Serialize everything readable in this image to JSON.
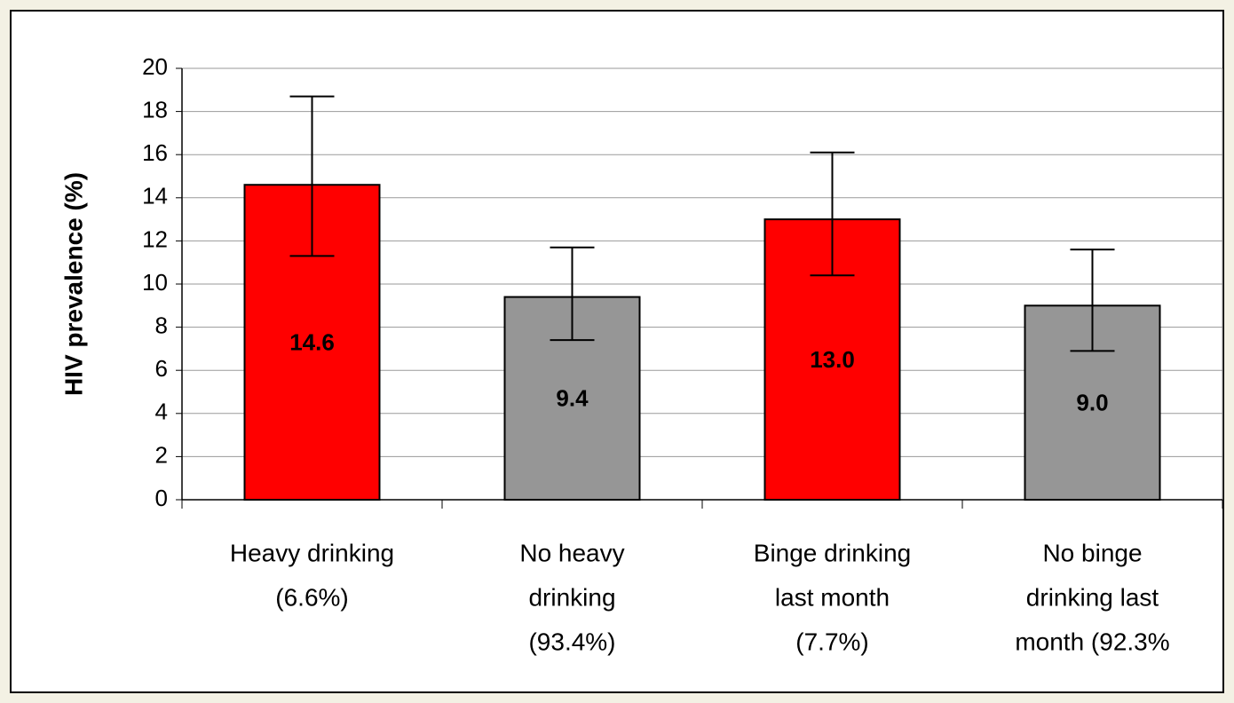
{
  "chart_data": {
    "type": "bar",
    "y_label": "HIV prevalence (%)",
    "categories": [
      [
        "Heavy drinking",
        "(6.6%)"
      ],
      [
        "No heavy",
        "drinking",
        "(93.4%)"
      ],
      [
        "Binge drinking",
        "last month",
        "(7.7%)"
      ],
      [
        "No binge",
        "drinking last",
        "month (92.3%"
      ]
    ],
    "values": [
      14.6,
      9.4,
      13.0,
      9.0
    ],
    "value_labels": [
      "14.6",
      "9.4",
      "13.0",
      "9.0"
    ],
    "ci_lower": [
      11.3,
      7.4,
      10.4,
      6.9
    ],
    "ci_upper": [
      18.7,
      11.7,
      16.1,
      11.6
    ],
    "colors": [
      "#ff0000",
      "#969696",
      "#ff0000",
      "#969696"
    ],
    "ylim": [
      0,
      20
    ],
    "yticks": [
      0,
      2,
      4,
      6,
      8,
      10,
      12,
      14,
      16,
      18,
      20
    ],
    "grid": true
  }
}
